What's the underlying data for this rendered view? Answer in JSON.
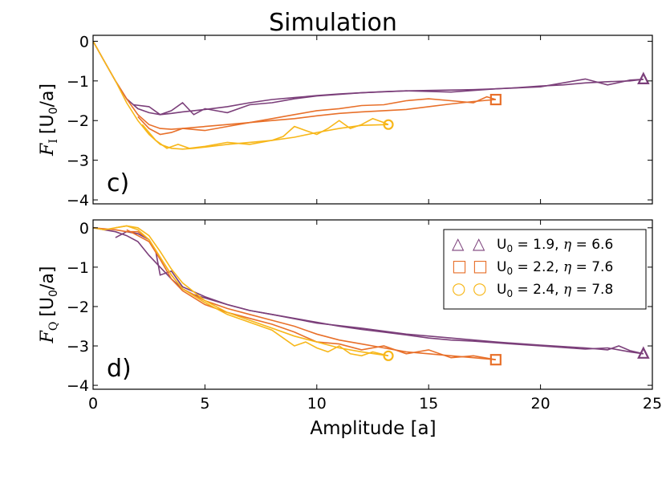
{
  "figure_title": "Simulation",
  "chart_data": [
    {
      "type": "line",
      "panel_label": "c)",
      "xlabel": "",
      "ylabel_main": "F",
      "ylabel_sub": "I",
      "ylabel_rest": "[U",
      "ylabel_sub2": "0",
      "ylabel_end": "/a]",
      "xlim": [
        0,
        25
      ],
      "ylim": [
        -4.1,
        0.15
      ],
      "xticks": [
        0,
        5,
        10,
        15,
        20,
        25
      ],
      "xtick_labels": [
        "",
        "",
        "",
        "",
        "",
        ""
      ],
      "yticks": [
        0,
        -1,
        -2,
        -3,
        -4
      ],
      "ytick_labels": [
        "0",
        "−1",
        "−2",
        "−3",
        "−4"
      ],
      "series": [
        {
          "name": "U0 = 1.9, η = 6.6",
          "color": "#7b3f7a",
          "marker": "triangle",
          "x": [
            0,
            0.5,
            1.0,
            1.5,
            2.0,
            2.5,
            3.0,
            3.5,
            4.0,
            4.5,
            5.0,
            6.0,
            7.0,
            8.0,
            9.0,
            10.0,
            11.0,
            12.0,
            13.0,
            14.0,
            15.0,
            16.0,
            17.0,
            18.0,
            19.0,
            20.0,
            21.0,
            22.0,
            23.0,
            24.0,
            24.6
          ],
          "y": [
            0,
            -0.5,
            -1.0,
            -1.45,
            -1.7,
            -1.8,
            -1.85,
            -1.82,
            -1.78,
            -1.75,
            -1.72,
            -1.65,
            -1.55,
            -1.47,
            -1.42,
            -1.37,
            -1.33,
            -1.3,
            -1.27,
            -1.25,
            -1.24,
            -1.23,
            -1.22,
            -1.2,
            -1.17,
            -1.13,
            -1.1,
            -1.05,
            -1.02,
            -1.0,
            -0.96
          ]
        },
        {
          "name": "U0 = 1.9, η = 6.6 (b)",
          "color": "#7b3f7a",
          "marker": "none",
          "x": [
            1.8,
            2.5,
            3.0,
            3.5,
            4.0,
            4.5,
            5.0,
            6.0,
            7.0,
            8.0,
            9.0,
            10.0,
            12.0,
            14.0,
            16.0,
            18.0,
            20.0,
            22.0,
            23.0,
            24.0,
            24.6
          ],
          "y": [
            -1.6,
            -1.65,
            -1.85,
            -1.75,
            -1.55,
            -1.85,
            -1.7,
            -1.8,
            -1.6,
            -1.55,
            -1.45,
            -1.38,
            -1.3,
            -1.25,
            -1.28,
            -1.2,
            -1.15,
            -0.95,
            -1.1,
            -0.98,
            -0.96
          ]
        },
        {
          "name": "U0 = 2.2, η = 7.6",
          "color": "#e8702a",
          "marker": "square",
          "x": [
            0,
            0.5,
            1.0,
            1.5,
            2.0,
            2.5,
            3.0,
            3.5,
            4.0,
            5.0,
            6.0,
            7.0,
            8.0,
            9.0,
            10.0,
            11.0,
            12.0,
            13.0,
            14.0,
            15.0,
            16.0,
            17.0,
            18.0
          ],
          "y": [
            0,
            -0.5,
            -1.0,
            -1.45,
            -1.85,
            -2.1,
            -2.2,
            -2.22,
            -2.2,
            -2.15,
            -2.1,
            -2.05,
            -2.0,
            -1.95,
            -1.88,
            -1.82,
            -1.78,
            -1.75,
            -1.72,
            -1.65,
            -1.58,
            -1.52,
            -1.47
          ]
        },
        {
          "name": "U0 = 2.2, η = 7.6 (b)",
          "color": "#e8702a",
          "marker": "none",
          "x": [
            2.0,
            2.5,
            3.0,
            3.5,
            4.0,
            5.0,
            6.0,
            7.0,
            8.0,
            9.0,
            10.0,
            11.0,
            12.0,
            13.0,
            14.0,
            15.0,
            16.0,
            17.0,
            17.6,
            18.0
          ],
          "y": [
            -1.9,
            -2.2,
            -2.35,
            -2.3,
            -2.2,
            -2.25,
            -2.15,
            -2.05,
            -1.95,
            -1.85,
            -1.75,
            -1.7,
            -1.62,
            -1.6,
            -1.5,
            -1.45,
            -1.5,
            -1.55,
            -1.4,
            -1.47
          ]
        },
        {
          "name": "U0 = 2.4, η = 7.8",
          "color": "#f7b71a",
          "marker": "circle",
          "x": [
            0,
            0.5,
            1.0,
            1.5,
            2.0,
            2.5,
            3.0,
            3.5,
            4.0,
            4.5,
            5.0,
            6.0,
            7.0,
            8.0,
            9.0,
            10.0,
            11.0,
            12.0,
            13.2
          ],
          "y": [
            0,
            -0.5,
            -1.0,
            -1.55,
            -2.0,
            -2.35,
            -2.6,
            -2.7,
            -2.72,
            -2.7,
            -2.67,
            -2.6,
            -2.55,
            -2.5,
            -2.42,
            -2.3,
            -2.2,
            -2.12,
            -2.1
          ]
        },
        {
          "name": "U0 = 2.4, η = 7.8 (b)",
          "color": "#f7b71a",
          "marker": "none",
          "x": [
            2.2,
            2.8,
            3.3,
            3.8,
            4.3,
            5.0,
            6.0,
            7.0,
            8.0,
            8.5,
            9.0,
            9.5,
            10.0,
            10.5,
            11.0,
            11.5,
            12.0,
            12.5,
            13.0,
            13.2
          ],
          "y": [
            -2.1,
            -2.5,
            -2.7,
            -2.6,
            -2.7,
            -2.65,
            -2.55,
            -2.6,
            -2.5,
            -2.4,
            -2.15,
            -2.25,
            -2.35,
            -2.2,
            -2.0,
            -2.2,
            -2.1,
            -1.95,
            -2.05,
            -2.1
          ]
        }
      ]
    },
    {
      "type": "line",
      "panel_label": "d)",
      "xlabel": "Amplitude [a]",
      "ylabel_main": "F",
      "ylabel_sub": "Q",
      "ylabel_rest": "[U",
      "ylabel_sub2": "0",
      "ylabel_end": "/a]",
      "xlim": [
        0,
        25
      ],
      "ylim": [
        -4.1,
        0.2
      ],
      "xticks": [
        0,
        5,
        10,
        15,
        20,
        25
      ],
      "xtick_labels": [
        "0",
        "5",
        "10",
        "15",
        "20",
        "25"
      ],
      "yticks": [
        0,
        -1,
        -2,
        -3,
        -4
      ],
      "ytick_labels": [
        "0",
        "−1",
        "−2",
        "−3",
        "−4"
      ],
      "legend": [
        {
          "sym1": "△",
          "sym2": "△",
          "label_a": "U",
          "label_sub": "0",
          "label_b": " = 1.9, ",
          "eta": "η",
          "label_c": " = 6.6",
          "color": "#7b3f7a"
        },
        {
          "sym1": "□",
          "sym2": "□",
          "label_a": "U",
          "label_sub": "0",
          "label_b": " = 2.2, ",
          "eta": "η",
          "label_c": " = 7.6",
          "color": "#e8702a"
        },
        {
          "sym1": "○",
          "sym2": "○",
          "label_a": "U",
          "label_sub": "0",
          "label_b": " = 2.4, ",
          "eta": "η",
          "label_c": " = 7.8",
          "color": "#f7b71a"
        }
      ],
      "legend_position": "top-right",
      "series": [
        {
          "name": "U0 = 1.9, η = 6.6",
          "color": "#7b3f7a",
          "marker": "triangle",
          "x": [
            0,
            0.5,
            1.0,
            1.5,
            2.0,
            2.5,
            3.0,
            3.5,
            4.0,
            4.5,
            5.0,
            6.0,
            7.0,
            8.0,
            9.0,
            10.0,
            11.0,
            12.0,
            13.0,
            14.0,
            15.0,
            16.0,
            17.0,
            18.0,
            19.0,
            20.0,
            21.0,
            22.0,
            23.0,
            24.0,
            24.6
          ],
          "y": [
            0,
            -0.05,
            -0.1,
            -0.2,
            -0.35,
            -0.7,
            -1.0,
            -1.3,
            -1.55,
            -1.7,
            -1.78,
            -1.95,
            -2.1,
            -2.2,
            -2.3,
            -2.4,
            -2.5,
            -2.58,
            -2.65,
            -2.72,
            -2.8,
            -2.85,
            -2.88,
            -2.92,
            -2.96,
            -3.0,
            -3.04,
            -3.08,
            -3.05,
            -3.15,
            -3.2
          ]
        },
        {
          "name": "U0 = 1.9, η = 6.6 (b)",
          "color": "#7b3f7a",
          "marker": "none",
          "x": [
            1.0,
            1.5,
            2.0,
            2.5,
            2.8,
            3.0,
            3.5,
            4.0,
            5.0,
            6.0,
            7.0,
            8.0,
            10.0,
            12.0,
            14.0,
            16.0,
            18.0,
            20.0,
            22.0,
            23.0,
            23.5,
            24.0,
            24.6
          ],
          "y": [
            -0.25,
            -0.1,
            -0.15,
            -0.3,
            -0.6,
            -1.2,
            -1.1,
            -1.5,
            -1.75,
            -1.95,
            -2.1,
            -2.2,
            -2.42,
            -2.55,
            -2.7,
            -2.8,
            -2.9,
            -2.98,
            -3.05,
            -3.1,
            -3.0,
            -3.12,
            -3.2
          ]
        },
        {
          "name": "U0 = 2.2, η = 7.6",
          "color": "#e8702a",
          "marker": "square",
          "x": [
            0,
            1.0,
            1.5,
            2.0,
            2.5,
            3.0,
            3.5,
            4.0,
            5.0,
            6.0,
            7.0,
            8.0,
            9.0,
            10.0,
            11.0,
            12.0,
            13.0,
            14.0,
            15.0,
            16.0,
            17.0,
            18.0
          ],
          "y": [
            0,
            -0.05,
            -0.1,
            -0.1,
            -0.3,
            -0.75,
            -1.2,
            -1.55,
            -1.85,
            -2.05,
            -2.2,
            -2.35,
            -2.5,
            -2.7,
            -2.85,
            -2.95,
            -3.05,
            -3.15,
            -3.2,
            -3.25,
            -3.3,
            -3.35
          ]
        },
        {
          "name": "U0 = 2.2, η = 7.6 (b)",
          "color": "#e8702a",
          "marker": "none",
          "x": [
            1.5,
            2.0,
            2.5,
            3.0,
            3.5,
            4.0,
            5.0,
            6.0,
            7.0,
            8.0,
            9.0,
            10.0,
            11.0,
            12.0,
            13.0,
            14.0,
            15.0,
            16.0,
            17.0,
            18.0
          ],
          "y": [
            -0.05,
            -0.2,
            -0.35,
            -0.8,
            -1.3,
            -1.6,
            -1.95,
            -2.15,
            -2.3,
            -2.45,
            -2.65,
            -2.9,
            -2.95,
            -3.1,
            -3.0,
            -3.2,
            -3.1,
            -3.3,
            -3.25,
            -3.35
          ]
        },
        {
          "name": "U0 = 2.4, η = 7.8",
          "color": "#f7b71a",
          "marker": "circle",
          "x": [
            0,
            0.5,
            1.0,
            1.5,
            2.0,
            2.5,
            3.0,
            3.5,
            4.0,
            5.0,
            6.0,
            7.0,
            8.0,
            9.0,
            10.0,
            11.0,
            12.0,
            13.2
          ],
          "y": [
            0,
            -0.05,
            0.0,
            0.05,
            0.0,
            -0.2,
            -0.6,
            -1.05,
            -1.4,
            -1.85,
            -2.15,
            -2.35,
            -2.55,
            -2.75,
            -2.9,
            -3.05,
            -3.15,
            -3.25
          ]
        },
        {
          "name": "U0 = 2.4, η = 7.8 (b)",
          "color": "#f7b71a",
          "marker": "none",
          "x": [
            1.0,
            1.5,
            2.0,
            2.5,
            3.0,
            3.5,
            4.0,
            5.0,
            6.0,
            7.0,
            8.0,
            8.5,
            9.0,
            9.5,
            10.0,
            10.5,
            11.0,
            11.5,
            12.0,
            12.5,
            13.2
          ],
          "y": [
            0.0,
            0.05,
            -0.05,
            -0.3,
            -0.75,
            -1.2,
            -1.55,
            -1.9,
            -2.2,
            -2.4,
            -2.6,
            -2.8,
            -3.0,
            -2.9,
            -3.05,
            -3.15,
            -3.0,
            -3.2,
            -3.25,
            -3.15,
            -3.25
          ]
        }
      ]
    }
  ]
}
